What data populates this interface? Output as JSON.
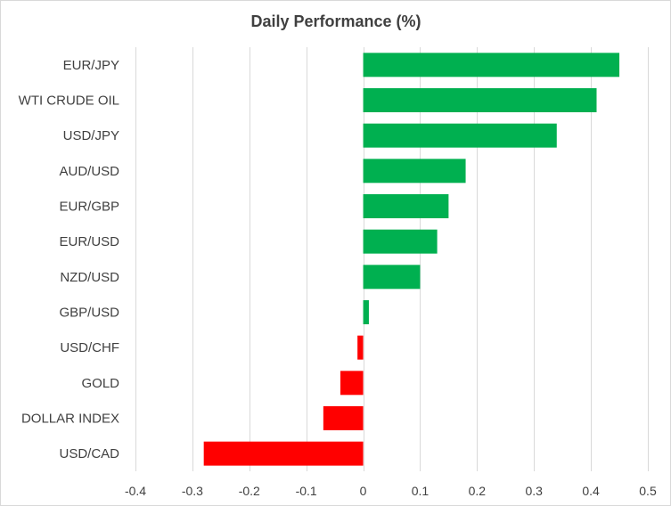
{
  "chart_data": {
    "type": "bar",
    "orientation": "horizontal",
    "title": "Daily Performance (%)",
    "xlabel": "",
    "ylabel": "",
    "categories": [
      "EUR/JPY",
      "WTI CRUDE OIL",
      "USD/JPY",
      "AUD/USD",
      "EUR/GBP",
      "EUR/USD",
      "NZD/USD",
      "GBP/USD",
      "USD/CHF",
      "GOLD",
      "DOLLAR INDEX",
      "USD/CAD"
    ],
    "values": [
      0.45,
      0.41,
      0.34,
      0.18,
      0.15,
      0.13,
      0.1,
      0.01,
      -0.01,
      -0.04,
      -0.07,
      -0.28
    ],
    "xlim": [
      -0.4,
      0.5
    ],
    "x_ticks": [
      -0.4,
      -0.3,
      -0.2,
      -0.1,
      0,
      0.1,
      0.2,
      0.3,
      0.4,
      0.5
    ],
    "x_tick_labels": [
      "-0.4",
      "-0.3",
      "-0.2",
      "-0.1",
      "0",
      "0.1",
      "0.2",
      "0.3",
      "0.4",
      "0.5"
    ],
    "grid": true,
    "legend": "none",
    "colors": {
      "positive": "#00b050",
      "negative": "#ff0000",
      "grid": "#d9d9d9",
      "text": "#404040"
    }
  }
}
